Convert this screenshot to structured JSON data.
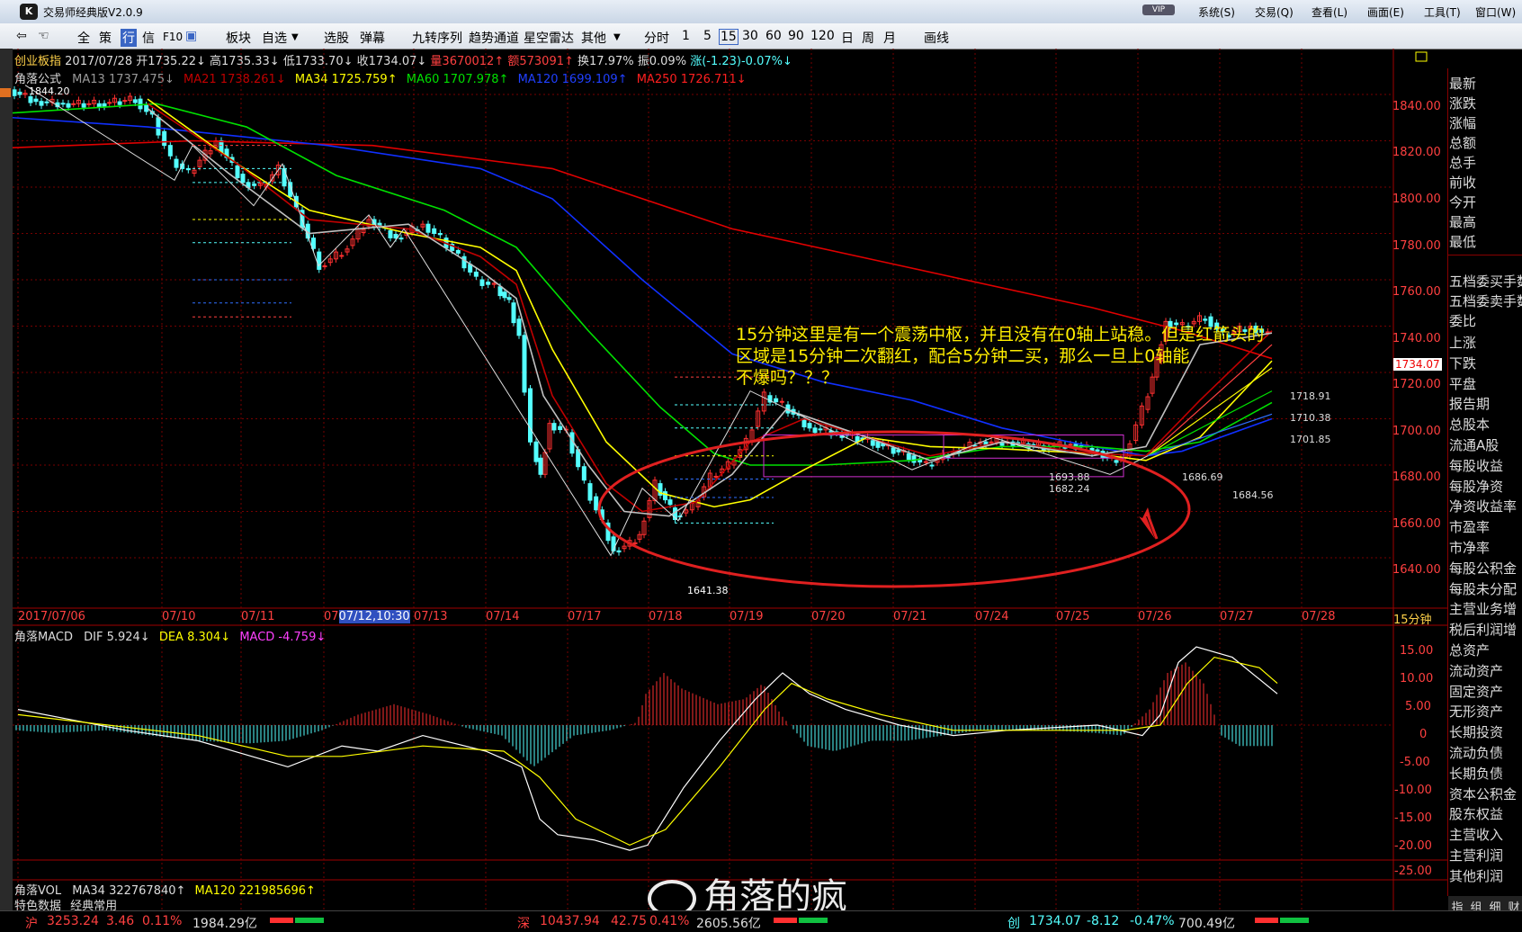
{
  "window": {
    "title": "交易师经典版V2.0.9",
    "menu": [
      "系统(S)",
      "交易(Q)",
      "查看(L)",
      "画面(E)",
      "工具(T)",
      "窗口(W)"
    ],
    "vip": "VIP"
  },
  "toolbar": {
    "items": [
      "全",
      "策",
      "行",
      "信",
      "F10",
      "板块",
      "自选",
      "选股",
      "弹幕",
      "九转序列",
      "趋势通道",
      "星空雷达",
      "其他"
    ],
    "periods": [
      "分时",
      "1",
      "5",
      "15",
      "30",
      "60",
      "90",
      "120",
      "日",
      "周",
      "月"
    ],
    "draw": "画线"
  },
  "quote": {
    "name": "创业板指",
    "date": "2017/07/28",
    "open": "开1735.22↓",
    "high": "高1735.33↓",
    "low": "低1733.70↓",
    "close": "收1734.07↓",
    "volume": "量3670012↑",
    "amount": "额573091↑",
    "turnover": "换17.97%",
    "amplitude": "振0.09%",
    "change": "涨(-1.23)-0.07%↓"
  },
  "ma_line": {
    "name": "角落公式",
    "ma13": "MA13 1737.475↓",
    "ma21": "MA21 1738.261↓",
    "ma34": "MA34 1725.759↑",
    "ma60": "MA60 1707.978↑",
    "ma120": "MA120 1699.109↑",
    "ma250": "MA250 1726.711↓"
  },
  "price_axis": [
    "1840.00",
    "1820.00",
    "1800.00",
    "1780.00",
    "1760.00",
    "1740.00",
    "1720.00",
    "1700.00",
    "1680.00",
    "1660.00",
    "1640.00"
  ],
  "current_price": "1734.07",
  "period_label": "15分钟",
  "chart_labels": {
    "high_mark": "1844.20",
    "low_mark": "1641.38",
    "l1": "1718.91",
    "l2": "1710.38",
    "l3": "1701.85",
    "b1": "1686.69",
    "b2": "1684.56",
    "c1": "1693.88",
    "c2": "1682.24"
  },
  "dates": [
    "2017/07/06",
    "07/10",
    "07/11",
    "07/12,10:30",
    "07/13",
    "07/14",
    "07/17",
    "07/18",
    "07/19",
    "07/20",
    "07/21",
    "07/24",
    "07/25",
    "07/26",
    "07/27",
    "07/28"
  ],
  "annotation": {
    "line1": "15分钟这里是有一个震荡中枢，并且没有在0轴上站稳。但是红箭头的",
    "line2": "区域是15分钟二次翻红，配合5分钟二买，那么一旦上0轴能",
    "line3": "不爆吗？？？"
  },
  "macd": {
    "name": "角落MACD",
    "dif": "DIF 5.924↓",
    "dea": "DEA 8.304↓",
    "macd": "MACD -4.759↓",
    "axis": [
      "15.00",
      "10.00",
      "5.00",
      "0",
      "-5.00",
      "-10.00",
      "-15.00",
      "-20.00",
      "-25.00"
    ]
  },
  "vol": {
    "name": "角落VOL",
    "ma34": "MA34 322767840↑",
    "ma120": "MA120 221985696↑"
  },
  "bottom_tabs": [
    "特色数据",
    "经典常用"
  ],
  "watermark": "角落的疯",
  "right_panel": {
    "top": [
      "最新",
      "涨跌",
      "涨幅",
      "总额",
      "总手",
      "前收",
      "今开",
      "最高",
      "最低"
    ],
    "mid": [
      "五档委买手数",
      "五档委卖手数",
      "委比"
    ],
    "bottom": [
      "上涨",
      "下跌",
      "平盘",
      "报告期",
      "总股本",
      "流通A股",
      "每股收益",
      "每股净资",
      "净资收益率",
      "市盈率",
      "市净率",
      "每股公积金",
      "每股未分配",
      "主营业务增",
      "税后利润增",
      "总资产",
      "流动资产",
      "固定资产",
      "无形资产",
      "长期投资",
      "流动负债",
      "长期负债",
      "资本公积金",
      "股东权益",
      "主营收入",
      "主营利润",
      "其他利润"
    ],
    "tabs": [
      "指",
      "组",
      "细",
      "财"
    ]
  },
  "status": {
    "sh_name": "沪",
    "sh": "3253.24",
    "sh_chg": "3.46",
    "sh_pct": "0.11%",
    "sh_amt": "1984.29亿",
    "sz_name": "深",
    "sz": "10437.94",
    "sz_chg": "42.75",
    "sz_pct": "0.41%",
    "sz_amt": "2605.56亿",
    "cy_name": "创",
    "cy": "1734.07",
    "cy_chg": "-8.12",
    "cy_pct": "-0.47%",
    "cy_amt": "700.49亿"
  },
  "colors": {
    "up": "#ff3030",
    "down": "#54ffff",
    "ma13": "#c0c0c0",
    "ma21": "#c00000",
    "ma34": "#ffff00",
    "ma60": "#00e000",
    "ma120": "#1030ff",
    "ma250": "#e00000",
    "annotation": "#ffee00"
  }
}
